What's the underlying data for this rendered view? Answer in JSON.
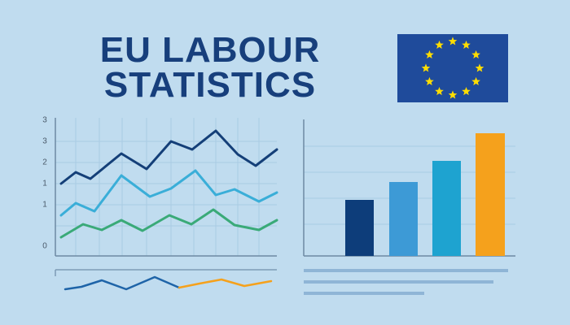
{
  "header": {
    "title_lines": [
      "EU LABOUR",
      "STATISTICS"
    ]
  },
  "left_panel": {
    "axis_labels": [
      "3",
      "3",
      "2",
      "1",
      "1",
      "0"
    ]
  }
}
